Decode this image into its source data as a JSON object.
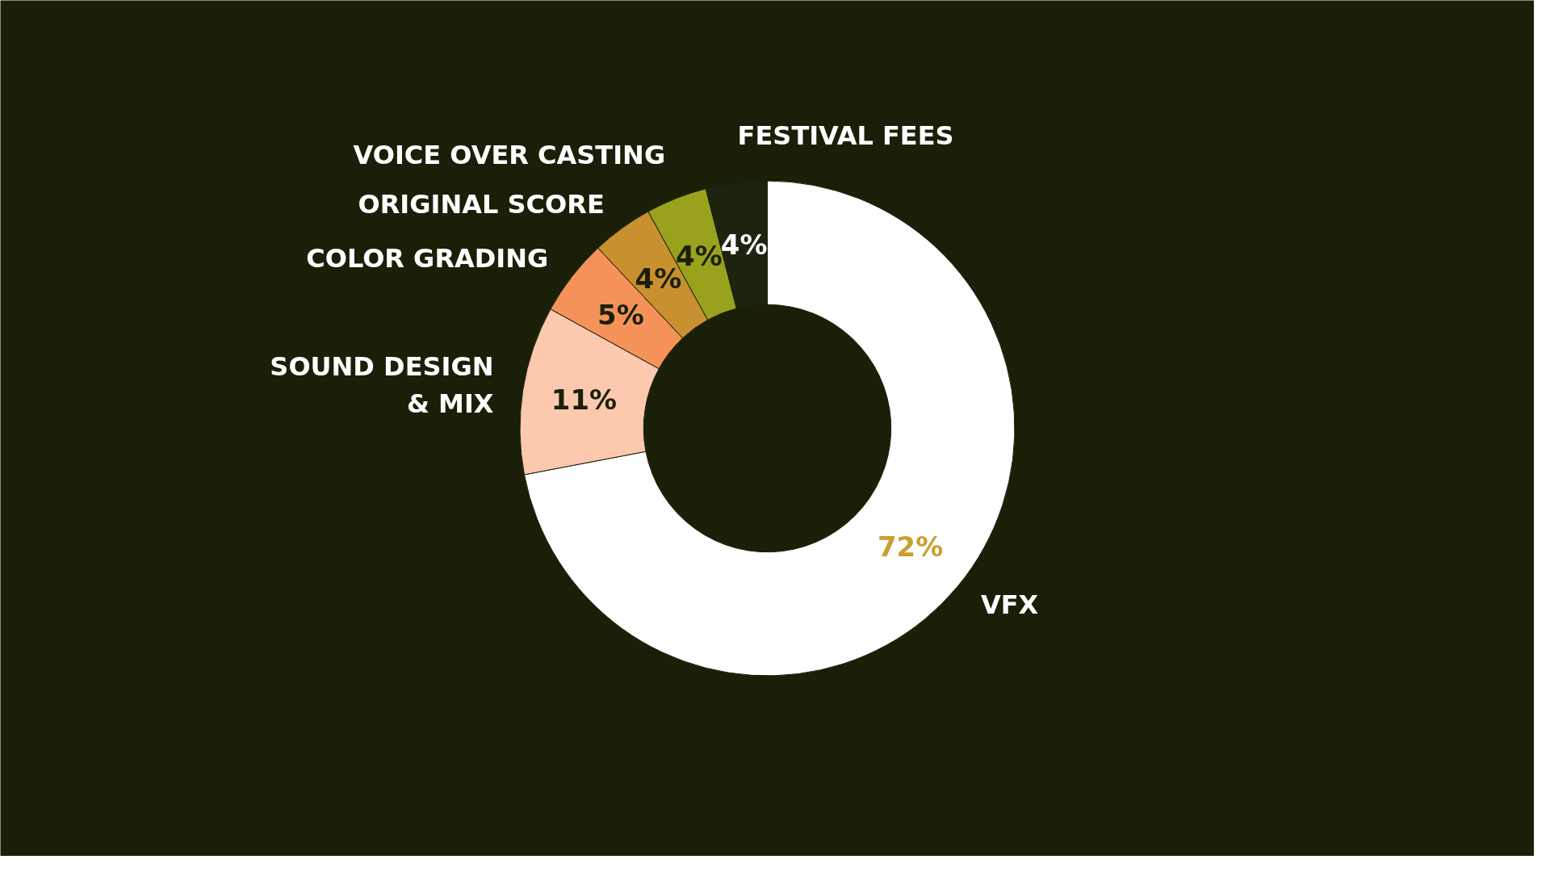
{
  "chart_data": {
    "type": "donut",
    "categories": [
      "VFX",
      "SOUND DESIGN\n& MIX",
      "COLOR GRADING",
      "ORIGINAL SCORE",
      "VOICE OVER CASTING",
      "FESTIVAL FEES"
    ],
    "values": [
      72,
      11,
      5,
      4,
      4,
      4
    ],
    "colors": [
      "#ffffff",
      "#fcc8ae",
      "#f4925a",
      "#c8902e",
      "#98a21c",
      "#1c2410"
    ],
    "value_labels": [
      "72%",
      "11%",
      "5%",
      "4%",
      "4%",
      "4%"
    ]
  }
}
